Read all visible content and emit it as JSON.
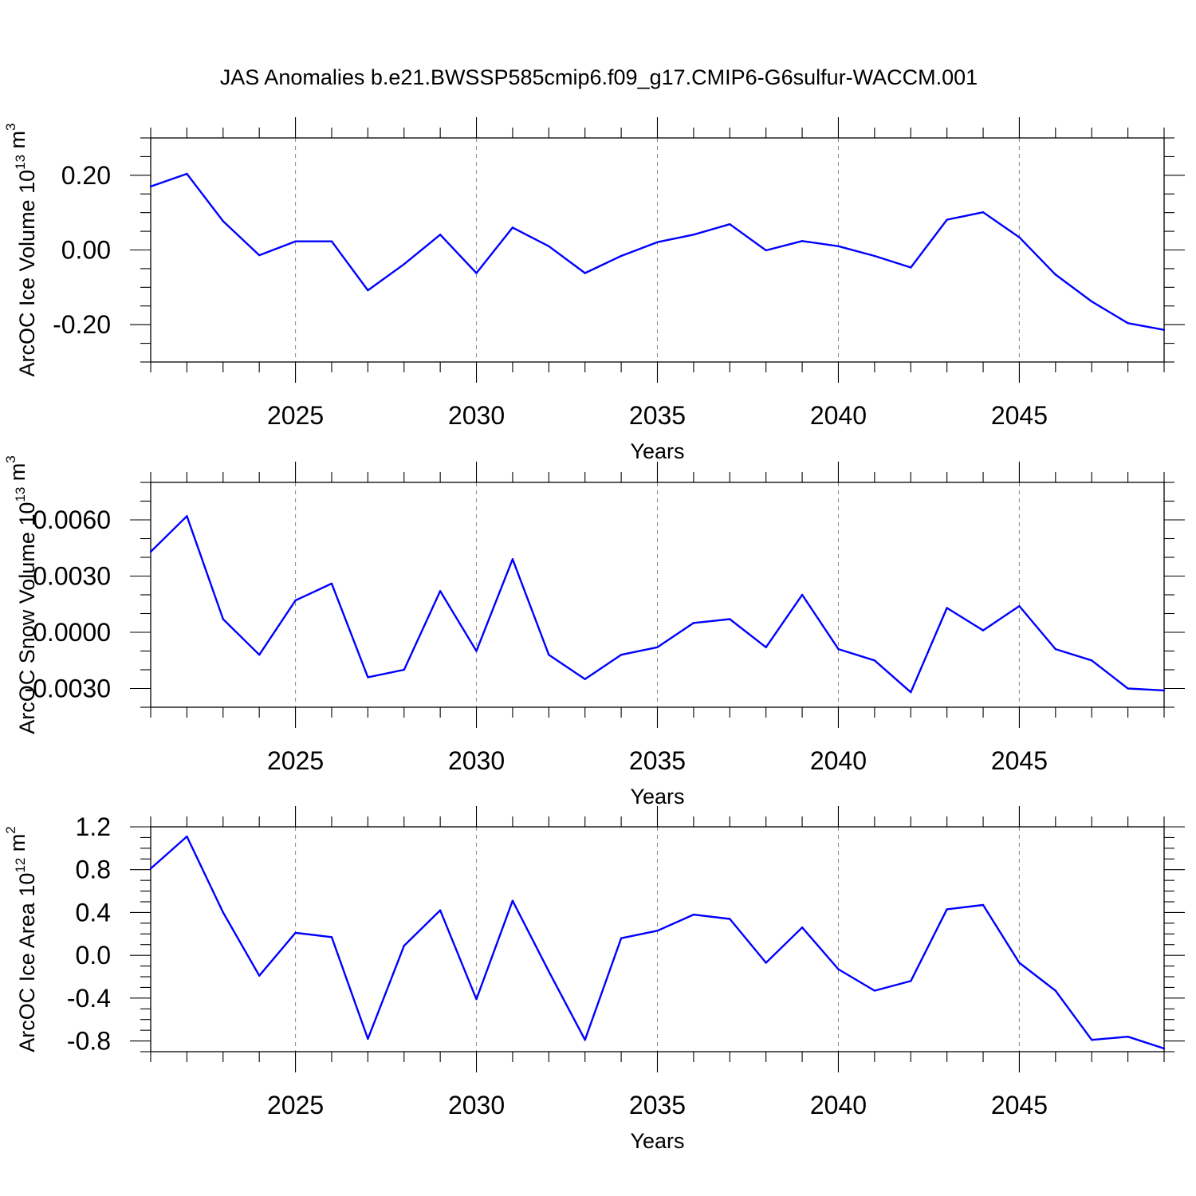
{
  "title": "JAS Anomalies b.e21.BWSSP585cmip6.f09_g17.CMIP6-G6sulfur-WACCM.001",
  "colors": {
    "line": "#0000ff",
    "grid": "#8a8a8a",
    "axis": "#000000"
  },
  "chart_data": [
    {
      "type": "line",
      "xlabel": "Years",
      "ylabel": {
        "text": "ArcOC Ice Volume 10",
        "exp": "13",
        "unit": " m",
        "unit_exp": "3"
      },
      "xlim": [
        2021,
        2049
      ],
      "ylim": [
        -0.3,
        0.3
      ],
      "xticks": [
        2025,
        2030,
        2035,
        2040,
        2045
      ],
      "xtick_labels": [
        "2025",
        "2030",
        "2035",
        "2040",
        "2045"
      ],
      "yticks": [
        -0.2,
        0.0,
        0.2
      ],
      "ytick_labels": [
        "-0.20",
        "0.00",
        "0.20"
      ],
      "yminor_step": 0.05,
      "x": [
        2021,
        2022,
        2023,
        2024,
        2025,
        2026,
        2027,
        2028,
        2029,
        2030,
        2031,
        2032,
        2033,
        2034,
        2035,
        2036,
        2037,
        2038,
        2039,
        2040,
        2041,
        2042,
        2043,
        2044,
        2045,
        2046,
        2047,
        2048,
        2049
      ],
      "values": [
        0.17,
        0.204,
        0.077,
        -0.014,
        0.023,
        0.023,
        -0.108,
        -0.038,
        0.041,
        -0.062,
        0.06,
        0.01,
        -0.062,
        -0.016,
        0.021,
        0.041,
        0.069,
        -0.001,
        0.024,
        0.01,
        -0.016,
        -0.047,
        0.081,
        0.101,
        0.034,
        -0.066,
        -0.138,
        -0.196,
        -0.214
      ],
      "grid": "x-dashed"
    },
    {
      "type": "line",
      "xlabel": "Years",
      "ylabel": {
        "text": "ArcOC Snow Volume 10",
        "exp": "13",
        "unit": " m",
        "unit_exp": "3"
      },
      "xlim": [
        2021,
        2049
      ],
      "ylim": [
        -0.004,
        0.008
      ],
      "xticks": [
        2025,
        2030,
        2035,
        2040,
        2045
      ],
      "xtick_labels": [
        "2025",
        "2030",
        "2035",
        "2040",
        "2045"
      ],
      "yticks": [
        -0.003,
        0.0,
        0.003,
        0.006
      ],
      "ytick_labels": [
        "-0.0030",
        "0.0000",
        "0.0030",
        "0.0060"
      ],
      "yminor_step": 0.001,
      "x": [
        2021,
        2022,
        2023,
        2024,
        2025,
        2026,
        2027,
        2028,
        2029,
        2030,
        2031,
        2032,
        2033,
        2034,
        2035,
        2036,
        2037,
        2038,
        2039,
        2040,
        2041,
        2042,
        2043,
        2044,
        2045,
        2046,
        2047,
        2048,
        2049
      ],
      "values": [
        0.0043,
        0.0062,
        0.0007,
        -0.0012,
        0.0017,
        0.0026,
        -0.0024,
        -0.002,
        0.0022,
        -0.001,
        0.0039,
        -0.0012,
        -0.0025,
        -0.0012,
        -0.0008,
        0.0005,
        0.0007,
        -0.0008,
        0.002,
        -0.0009,
        -0.0015,
        -0.0032,
        0.0013,
        0.0001,
        0.0014,
        -0.0009,
        -0.0015,
        -0.003,
        -0.0031
      ],
      "grid": "x-dashed"
    },
    {
      "type": "line",
      "xlabel": "Years",
      "ylabel": {
        "text": "ArcOC Ice Area 10",
        "exp": "12",
        "unit": " m",
        "unit_exp": "2"
      },
      "xlim": [
        2021,
        2049
      ],
      "ylim": [
        -0.9,
        1.2
      ],
      "xticks": [
        2025,
        2030,
        2035,
        2040,
        2045
      ],
      "xtick_labels": [
        "2025",
        "2030",
        "2035",
        "2040",
        "2045"
      ],
      "yticks": [
        -0.8,
        -0.4,
        0.0,
        0.4,
        0.8,
        1.2
      ],
      "ytick_labels": [
        "-0.8",
        "-0.4",
        "0.0",
        "0.4",
        "0.8",
        "1.2"
      ],
      "yminor_step": 0.1,
      "x": [
        2021,
        2022,
        2023,
        2024,
        2025,
        2026,
        2027,
        2028,
        2029,
        2030,
        2031,
        2032,
        2033,
        2034,
        2035,
        2036,
        2037,
        2038,
        2039,
        2040,
        2041,
        2042,
        2043,
        2044,
        2045,
        2046,
        2047,
        2048,
        2049
      ],
      "values": [
        0.81,
        1.11,
        0.4,
        -0.19,
        0.21,
        0.17,
        -0.78,
        0.09,
        0.42,
        -0.41,
        0.51,
        -0.15,
        -0.79,
        0.16,
        0.23,
        0.38,
        0.34,
        -0.07,
        0.26,
        -0.13,
        -0.33,
        -0.24,
        0.43,
        0.47,
        -0.07,
        -0.33,
        -0.79,
        -0.76,
        -0.87
      ],
      "grid": "x-dashed"
    }
  ]
}
